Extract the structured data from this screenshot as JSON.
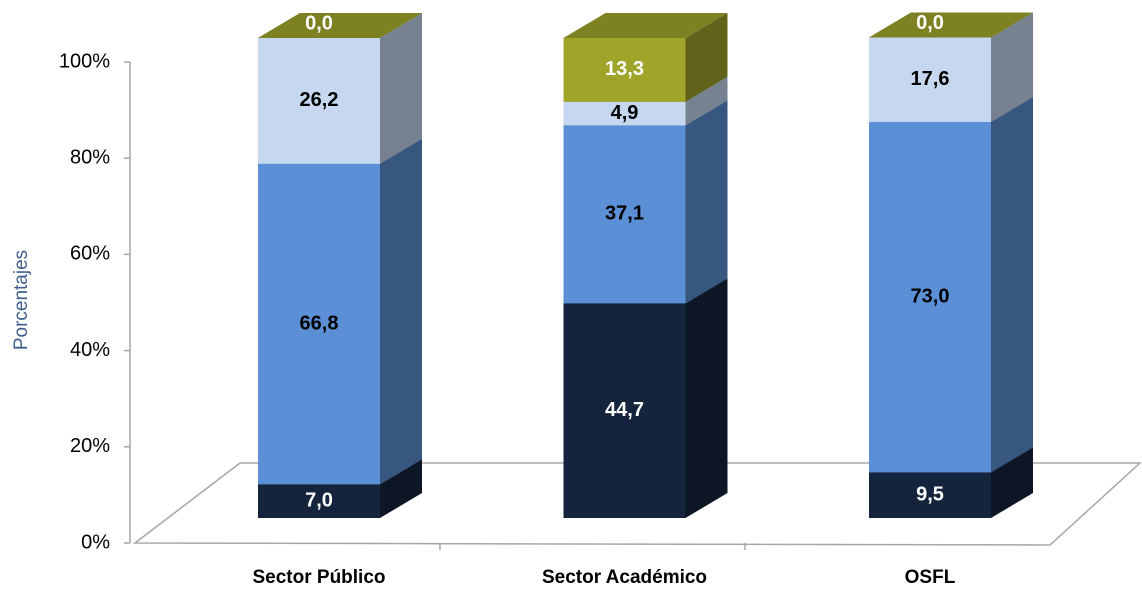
{
  "chart_data": {
    "type": "bar3d_stacked",
    "y_label": "Porcentajes",
    "categories": [
      "Sector Público",
      "Sector Académico",
      "OSFL"
    ],
    "series": [
      {
        "color": "#14243d",
        "values": [
          7.0,
          44.7,
          9.5
        ],
        "value_labels": [
          "7,0",
          "44,7",
          "9,5"
        ]
      },
      {
        "color": "#5b8fd6",
        "values": [
          66.8,
          37.1,
          73.0
        ],
        "value_labels": [
          "66,8",
          "37,1",
          "73,0"
        ]
      },
      {
        "color": "#c6d8f0",
        "values": [
          26.2,
          4.9,
          17.6
        ],
        "value_labels": [
          "26,2",
          "4,9",
          "17,6"
        ]
      },
      {
        "color": "#a0a52a",
        "values": [
          0.0,
          13.3,
          0.0
        ],
        "value_labels": [
          "0,0",
          "13,3",
          "0,0"
        ]
      }
    ],
    "ylim": [
      0,
      100
    ],
    "yticks": [
      {
        "value": 0,
        "label": "0%"
      },
      {
        "value": 20,
        "label": "20%"
      },
      {
        "value": 40,
        "label": "40%"
      },
      {
        "value": 60,
        "label": "60%"
      },
      {
        "value": 80,
        "label": "80%"
      },
      {
        "value": 100,
        "label": "100%"
      }
    ]
  }
}
